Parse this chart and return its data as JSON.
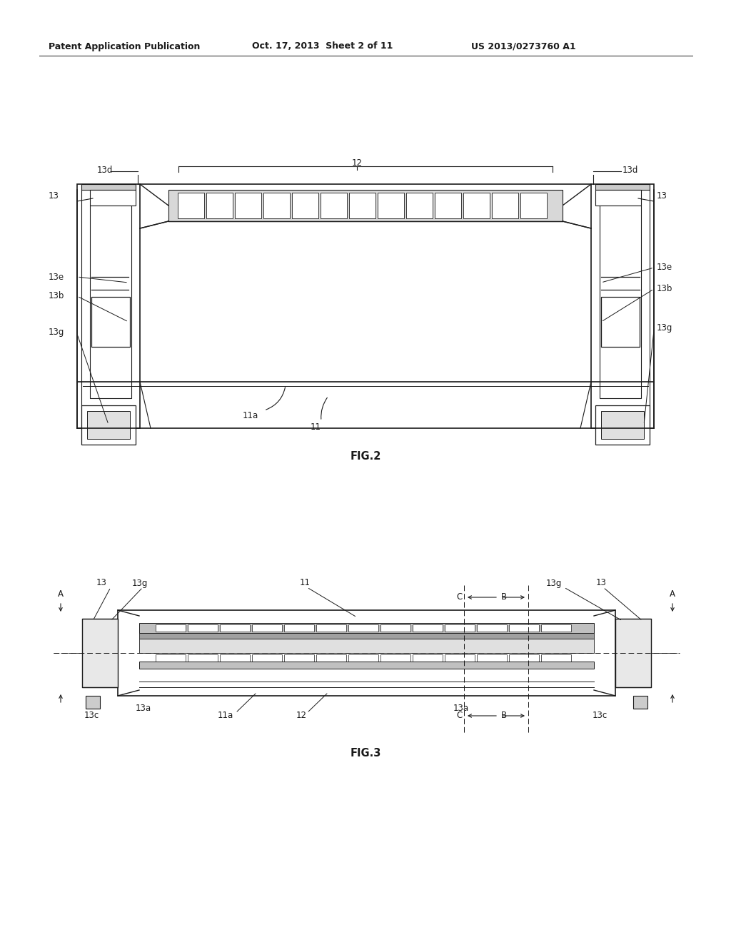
{
  "bg_color": "#ffffff",
  "header_left": "Patent Application Publication",
  "header_mid": "Oct. 17, 2013  Sheet 2 of 11",
  "header_right": "US 2013/0273760 A1",
  "fig2_label": "FIG.2",
  "fig3_label": "FIG.3",
  "lc": "#1a1a1a",
  "lw": 1.0
}
